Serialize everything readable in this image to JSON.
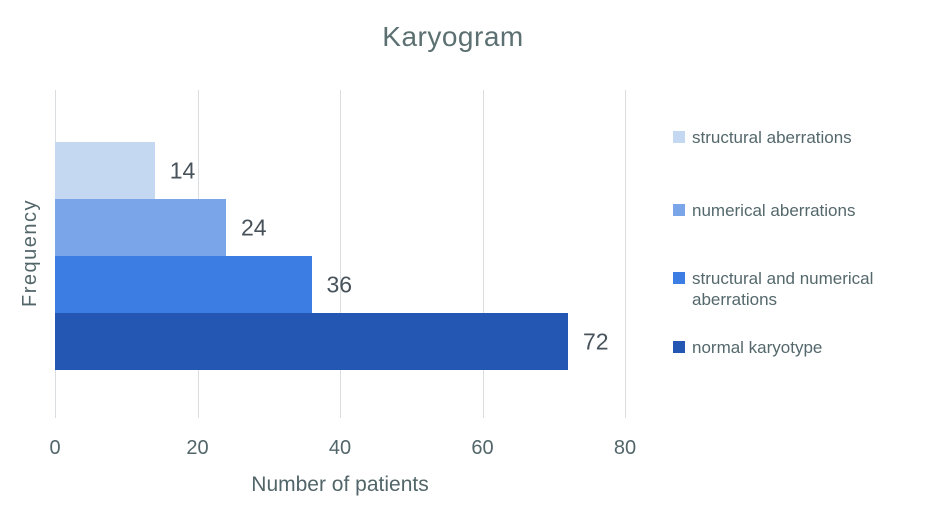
{
  "chart_data": {
    "type": "bar",
    "orientation": "horizontal",
    "title": "Karyogram",
    "xlabel": "Number of patients",
    "ylabel": "Frequency",
    "xlim": [
      0,
      80
    ],
    "xticks": [
      0,
      20,
      40,
      60,
      80
    ],
    "grid": "vertical-only",
    "legend_position": "right",
    "categories": [
      "structural aberrations",
      "numerical aberrations",
      "structural and numerical aberrations",
      "normal karyotype"
    ],
    "values": [
      14,
      24,
      36,
      72
    ],
    "data_labels": [
      "14",
      "24",
      "36",
      "72"
    ],
    "bar_colors": [
      "#C5D8F2",
      "#7AA6E9",
      "#3C7DE4",
      "#2456B3"
    ]
  },
  "legend": {
    "items": [
      {
        "label": "structural aberrations",
        "color": "#C5D8F2"
      },
      {
        "label": "numerical aberrations",
        "color": "#7AA6E9"
      },
      {
        "label": "structural and numerical aberrations",
        "color": "#3C7DE4"
      },
      {
        "label": "normal karyotype",
        "color": "#2456B3"
      }
    ]
  },
  "colors": {
    "background": "#ffffff",
    "gridline": "#dadee1",
    "title_text": "#5c7072",
    "axis_text": "#52666a",
    "data_label_text": "#47525a",
    "legend_text": "#54686c"
  }
}
